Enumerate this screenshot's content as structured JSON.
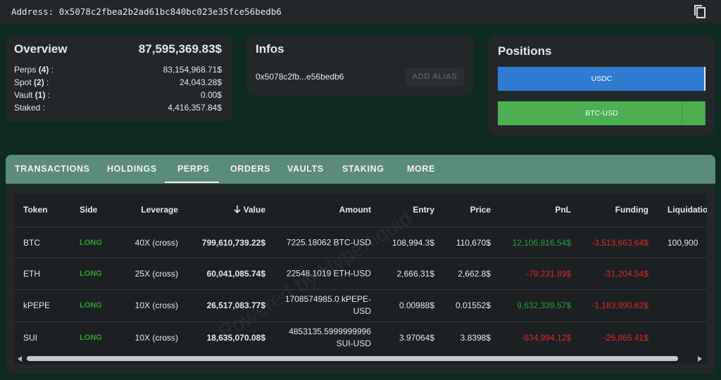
{
  "address": {
    "label": "Address:",
    "value": "0x5078c2fbea2b2ad61bc840bc023e35fce56bedb6"
  },
  "overview": {
    "title": "Overview",
    "total": "87,595,369.83$",
    "rows": [
      {
        "label_parts": [
          "Perps ",
          "(4)",
          " :"
        ],
        "value": "83,154,968.71$"
      },
      {
        "label_parts": [
          "Spot ",
          "(2)",
          " :"
        ],
        "value": "24,043.28$"
      },
      {
        "label_parts": [
          "Vault ",
          "(1)",
          " :"
        ],
        "value": "0.00$"
      },
      {
        "label_parts": [
          "Staked :"
        ],
        "value": "4,416,357.84$"
      }
    ]
  },
  "infos": {
    "title": "Infos",
    "address_short": "0x5078c2fb...e56bedb6",
    "button": "ADD ALIAS"
  },
  "positions": {
    "title": "Positions",
    "bars": [
      "USDC",
      "BTC-USD"
    ]
  },
  "tabs": {
    "items": [
      "TRANSACTIONS",
      "HOLDINGS",
      "PERPS",
      "ORDERS",
      "VAULTS",
      "STAKING",
      "MORE"
    ],
    "active": 2
  },
  "table": {
    "headers": [
      "Token",
      "Side",
      "Leverage",
      "Value",
      "Amount",
      "Entry",
      "Price",
      "PnL",
      "Funding",
      "Liquidation"
    ],
    "rows": [
      [
        "BTC",
        "LONG",
        "40X (cross)",
        "799,610,739.22$",
        "7225.18062 BTC-USD",
        "108,994.3$",
        "110,670$",
        "12,106,816.54$",
        "-3,513,663.64$",
        "100,900"
      ],
      [
        "ETH",
        "LONG",
        "25X (cross)",
        "60,041,085.74$",
        "22548.1019 ETH-USD",
        "2,666.31$",
        "2,662.8$",
        "-79,231.89$",
        "-31,204.54$",
        null
      ],
      [
        "kPEPE",
        "LONG",
        "10X (cross)",
        "26,517,083.77$",
        "1708574985.0 kPEPE-USD",
        "0.00988$",
        "0.01552$",
        "9,632,339.57$",
        "-1,183,990.62$",
        null
      ],
      [
        "SUI",
        "LONG",
        "10X (cross)",
        "18,635,070.08$",
        "4853135.5999999996 SUI-USD",
        "3.97064$",
        "3.8398$",
        "-634,994.12$",
        "-25,865.41$",
        null
      ]
    ]
  },
  "watermark": "Powered by Hyperliquid"
}
